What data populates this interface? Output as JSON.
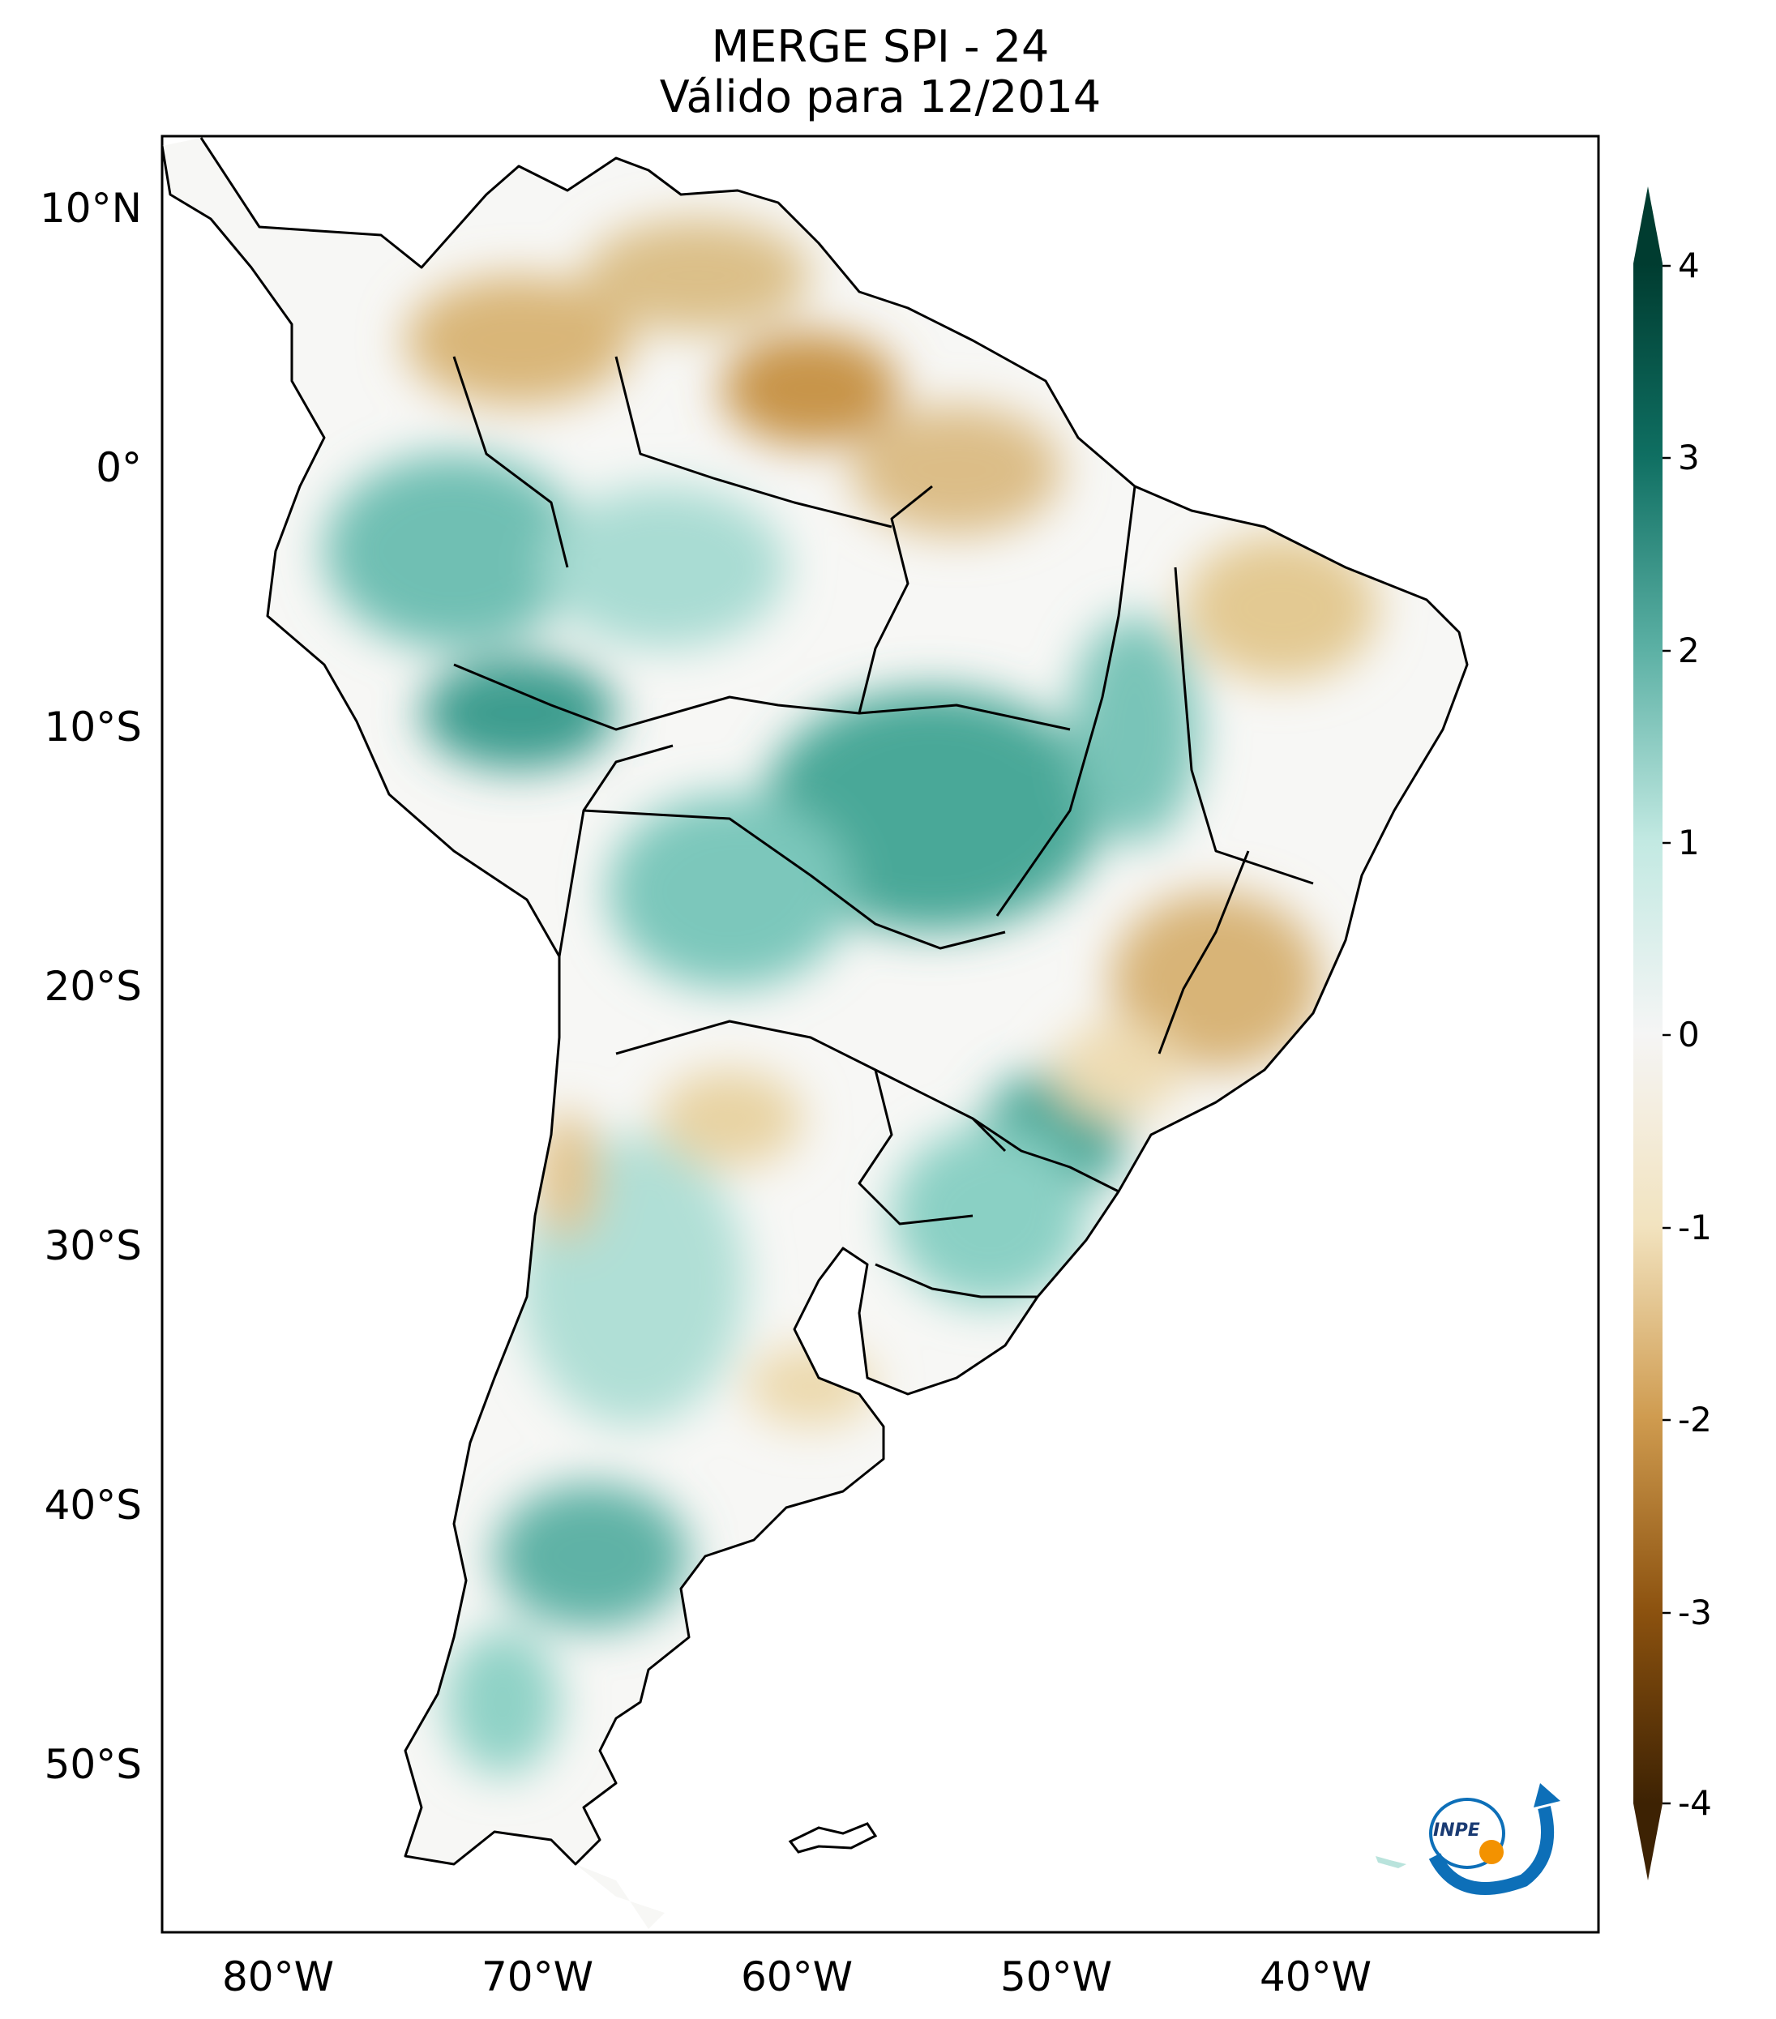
{
  "title": {
    "line1": "MERGE   SPI - 24",
    "line2": "Válido para 12/2014"
  },
  "map": {
    "lat_ticks": [
      "10°N",
      "0°",
      "10°S",
      "20°S",
      "30°S",
      "40°S",
      "50°S"
    ],
    "lon_ticks": [
      "80°W",
      "70°W",
      "60°W",
      "50°W",
      "40°W"
    ],
    "extent_lon": [
      -85,
      -30
    ],
    "extent_lat": [
      -56,
      13
    ],
    "palette": "BrBG"
  },
  "colorbar": {
    "ticks": [
      "4",
      "3",
      "2",
      "1",
      "0",
      "-1",
      "-2",
      "-3",
      "-4"
    ],
    "range": [
      -4,
      4
    ],
    "extend": "both",
    "colors": {
      "neg4": "#3d2203",
      "neg3": "#8c520f",
      "neg2": "#cf9b4f",
      "neg1": "#f2e3bf",
      "zero": "#f5f5f5",
      "pos1": "#c2e9e2",
      "pos2": "#5bb0a4",
      "pos3": "#0f6f62",
      "pos4": "#003c30"
    }
  },
  "logo": {
    "text": "INPE",
    "colors": {
      "blue": "#0d6fb8",
      "orange": "#f39200"
    }
  }
}
